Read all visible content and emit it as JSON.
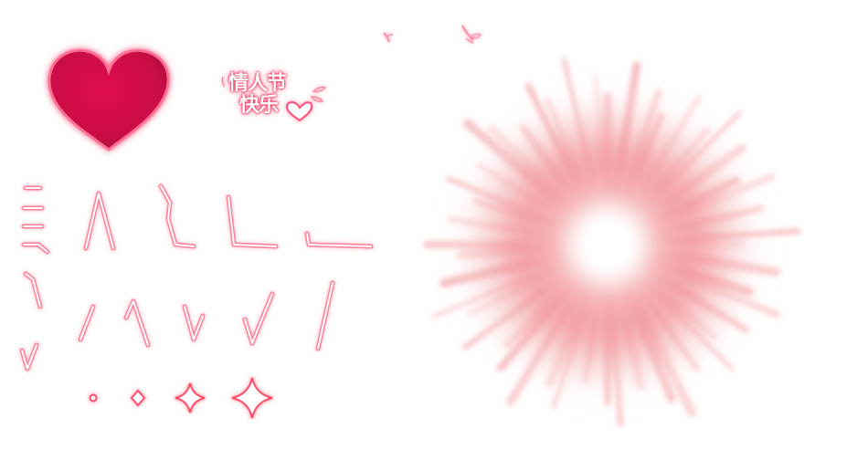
{
  "title_art": {
    "line1": "情人节",
    "line2": "快乐"
  },
  "colors": {
    "heart_fill": "#dc0f4c",
    "heart_glow": "#ff9fb7",
    "stroke_glow": "#ff7f99",
    "stroke_core": "#ffffff",
    "burst": "#ef7f85"
  },
  "icons": {
    "heart": "heart-icon",
    "sparkle": "sparkle-icon",
    "light_burst": "light-burst-icon",
    "leaf": "leaf-icon"
  }
}
